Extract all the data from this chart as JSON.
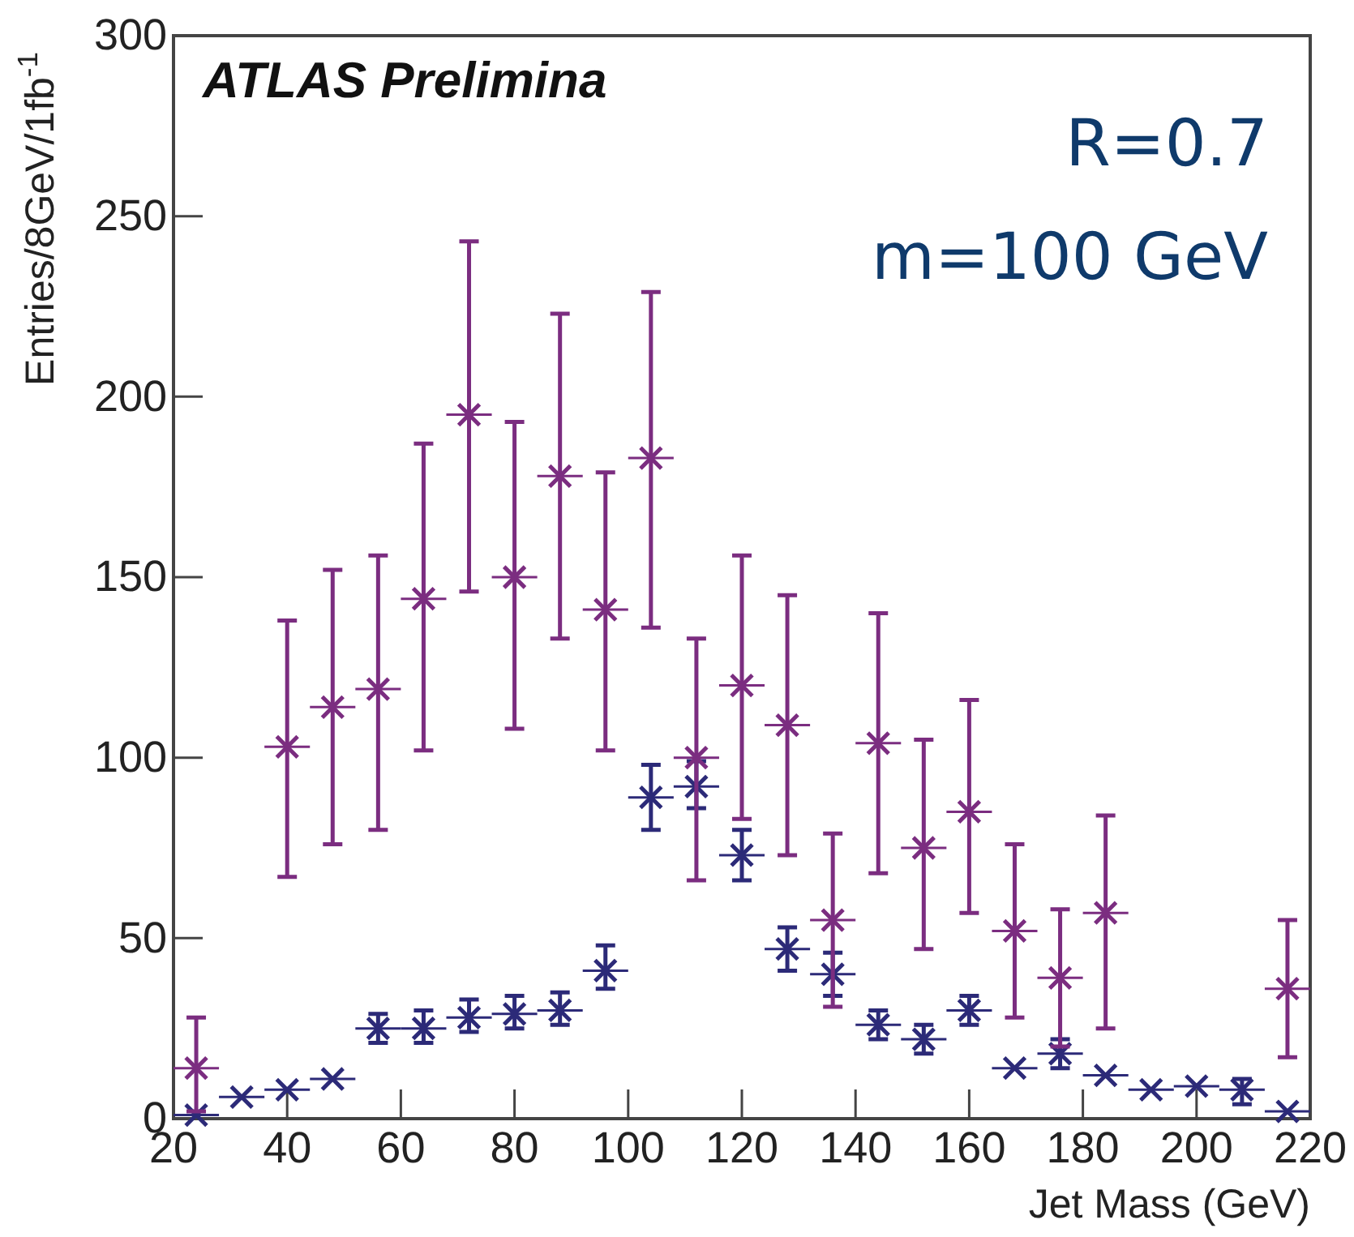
{
  "chart_data": {
    "type": "scatter",
    "xlabel": "Jet Mass (GeV)",
    "ylabel": "Entries/8GeV/1fb$^{-1}$",
    "annotations": [
      "ATLAS Prelimina",
      "R=0.7",
      "m=100 GeV"
    ],
    "xlim": [
      20,
      220
    ],
    "ylim": [
      0,
      300
    ],
    "xticks": [
      20,
      40,
      60,
      80,
      100,
      120,
      140,
      160,
      180,
      200,
      220
    ],
    "yticks": [
      0,
      50,
      100,
      150,
      200,
      250,
      300
    ],
    "marker": "cross",
    "grid": false,
    "series": [
      {
        "color": "#2c2a78",
        "x": [
          24,
          32,
          40,
          48,
          56,
          64,
          72,
          80,
          88,
          96,
          104,
          112,
          120,
          128,
          136,
          144,
          152,
          160,
          168,
          176,
          184,
          192,
          200,
          208,
          216
        ],
        "values": [
          1,
          6,
          8,
          11,
          25,
          25,
          28,
          29,
          30,
          41,
          89,
          92,
          73,
          47,
          40,
          26,
          22,
          30,
          14,
          18,
          12,
          8,
          9,
          8,
          2
        ],
        "xerrors": [
          4,
          4,
          4,
          4,
          4,
          4,
          4,
          4,
          4,
          4,
          4,
          4,
          4,
          4,
          4,
          4,
          4,
          4,
          4,
          4,
          4,
          4,
          4,
          4,
          4
        ],
        "errors": [
          null,
          null,
          null,
          null,
          [
            21,
            29
          ],
          [
            21,
            30
          ],
          [
            24,
            33
          ],
          [
            25,
            34
          ],
          [
            26,
            35
          ],
          [
            36,
            48
          ],
          [
            80,
            98
          ],
          [
            86,
            99
          ],
          [
            66,
            80
          ],
          [
            41,
            53
          ],
          [
            34,
            46
          ],
          [
            22,
            30
          ],
          [
            18,
            26
          ],
          [
            26,
            34
          ],
          null,
          [
            14,
            22
          ],
          null,
          null,
          null,
          [
            4,
            11
          ],
          null
        ]
      },
      {
        "color": "#7b2d80",
        "x": [
          24,
          40,
          48,
          56,
          64,
          72,
          80,
          88,
          96,
          104,
          112,
          120,
          128,
          136,
          144,
          152,
          160,
          168,
          176,
          184,
          216
        ],
        "values": [
          14,
          103,
          114,
          119,
          144,
          195,
          150,
          178,
          141,
          183,
          100,
          120,
          109,
          55,
          104,
          75,
          85,
          52,
          39,
          57,
          36
        ],
        "xerrors": [
          4,
          4,
          4,
          4,
          4,
          4,
          4,
          4,
          4,
          4,
          4,
          4,
          4,
          4,
          4,
          4,
          4,
          4,
          4,
          4,
          4
        ],
        "errors": [
          [
            2,
            28
          ],
          [
            67,
            138
          ],
          [
            76,
            152
          ],
          [
            80,
            156
          ],
          [
            102,
            187
          ],
          [
            146,
            243
          ],
          [
            108,
            193
          ],
          [
            133,
            223
          ],
          [
            102,
            179
          ],
          [
            136,
            229
          ],
          [
            66,
            133
          ],
          [
            83,
            156
          ],
          [
            73,
            145
          ],
          [
            31,
            79
          ],
          [
            68,
            140
          ],
          [
            47,
            105
          ],
          [
            57,
            116
          ],
          [
            28,
            76
          ],
          [
            20,
            58
          ],
          [
            25,
            84
          ],
          [
            17,
            55
          ]
        ]
      }
    ]
  }
}
